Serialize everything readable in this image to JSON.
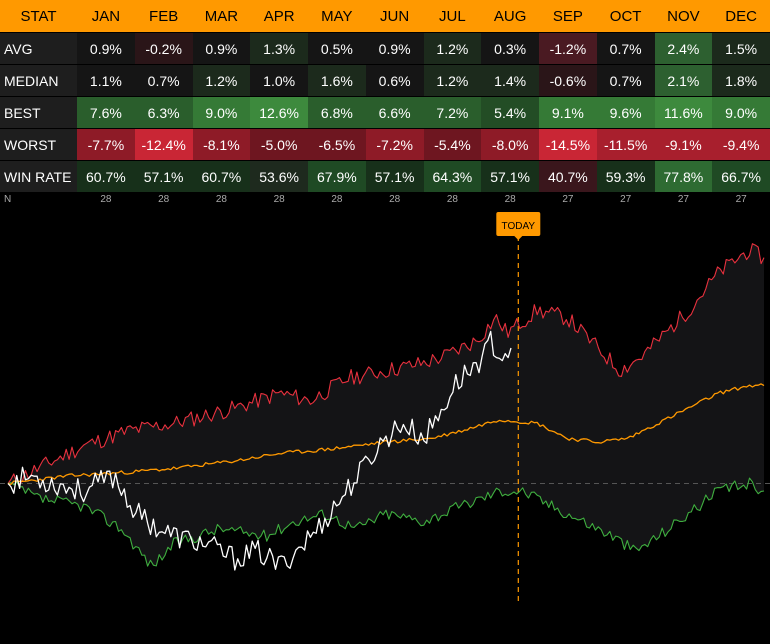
{
  "table": {
    "header_label": "STAT",
    "months": [
      "JAN",
      "FEB",
      "MAR",
      "APR",
      "MAY",
      "JUN",
      "JUL",
      "AUG",
      "SEP",
      "OCT",
      "NOV",
      "DEC"
    ],
    "rows": [
      {
        "label": "AVG",
        "values": [
          "0.9%",
          "-0.2%",
          "0.9%",
          "1.3%",
          "0.5%",
          "0.9%",
          "1.2%",
          "0.3%",
          "-1.2%",
          "0.7%",
          "2.4%",
          "1.5%"
        ]
      },
      {
        "label": "MEDIAN",
        "values": [
          "1.1%",
          "0.7%",
          "1.2%",
          "1.0%",
          "1.6%",
          "0.6%",
          "1.2%",
          "1.4%",
          "-0.6%",
          "0.7%",
          "2.1%",
          "1.8%"
        ]
      },
      {
        "label": "BEST",
        "values": [
          "7.6%",
          "6.3%",
          "9.0%",
          "12.6%",
          "6.8%",
          "6.6%",
          "7.2%",
          "5.4%",
          "9.1%",
          "9.6%",
          "11.6%",
          "9.0%"
        ]
      },
      {
        "label": "WORST",
        "values": [
          "-7.7%",
          "-12.4%",
          "-8.1%",
          "-5.0%",
          "-6.5%",
          "-7.2%",
          "-5.4%",
          "-8.0%",
          "-14.5%",
          "-11.5%",
          "-9.1%",
          "-9.4%"
        ]
      },
      {
        "label": "WIN RATE",
        "values": [
          "60.7%",
          "57.1%",
          "60.7%",
          "53.6%",
          "67.9%",
          "57.1%",
          "64.3%",
          "57.1%",
          "40.7%",
          "59.3%",
          "77.8%",
          "66.7%"
        ]
      }
    ],
    "n_row": {
      "label": "N",
      "values": [
        "28",
        "28",
        "28",
        "28",
        "28",
        "28",
        "28",
        "28",
        "27",
        "27",
        "27",
        "27"
      ]
    }
  },
  "chart_data": {
    "type": "line",
    "marker_label": "TODAY",
    "marker_fraction": 0.675,
    "y_range": [
      -20,
      35
    ],
    "series": [
      {
        "color": "#e8313e",
        "keypoints": [
          [
            0,
            0
          ],
          [
            0.04,
            2
          ],
          [
            0.1,
            5
          ],
          [
            0.16,
            7
          ],
          [
            0.22,
            8
          ],
          [
            0.3,
            10
          ],
          [
            0.36,
            12
          ],
          [
            0.4,
            11
          ],
          [
            0.45,
            14
          ],
          [
            0.5,
            15
          ],
          [
            0.55,
            16
          ],
          [
            0.58,
            17
          ],
          [
            0.62,
            19
          ],
          [
            0.645,
            22
          ],
          [
            0.66,
            20
          ],
          [
            0.7,
            23
          ],
          [
            0.74,
            22
          ],
          [
            0.78,
            18
          ],
          [
            0.81,
            15
          ],
          [
            0.84,
            17
          ],
          [
            0.86,
            19
          ],
          [
            0.9,
            23
          ],
          [
            0.94,
            28
          ],
          [
            0.98,
            31
          ],
          [
            1,
            30
          ]
        ]
      },
      {
        "color": "#ff9900",
        "keypoints": [
          [
            0,
            0
          ],
          [
            0.08,
            1
          ],
          [
            0.16,
            1.5
          ],
          [
            0.22,
            2
          ],
          [
            0.3,
            3
          ],
          [
            0.36,
            4
          ],
          [
            0.42,
            4.5
          ],
          [
            0.5,
            5.5
          ],
          [
            0.56,
            6
          ],
          [
            0.6,
            7
          ],
          [
            0.65,
            8.5
          ],
          [
            0.7,
            8
          ],
          [
            0.74,
            6
          ],
          [
            0.78,
            5.5
          ],
          [
            0.82,
            6
          ],
          [
            0.86,
            8
          ],
          [
            0.9,
            10
          ],
          [
            0.94,
            12
          ],
          [
            0.98,
            13
          ],
          [
            1,
            13
          ]
        ]
      },
      {
        "color": "#3fae3f",
        "keypoints": [
          [
            0,
            0
          ],
          [
            0.04,
            -2
          ],
          [
            0.1,
            -3
          ],
          [
            0.15,
            -6
          ],
          [
            0.19,
            -11
          ],
          [
            0.22,
            -8
          ],
          [
            0.28,
            -6
          ],
          [
            0.34,
            -7
          ],
          [
            0.38,
            -5
          ],
          [
            0.42,
            -4
          ],
          [
            0.46,
            -6
          ],
          [
            0.5,
            -4
          ],
          [
            0.55,
            -5
          ],
          [
            0.6,
            -3
          ],
          [
            0.65,
            -1
          ],
          [
            0.68,
            -1
          ],
          [
            0.72,
            -3
          ],
          [
            0.76,
            -5
          ],
          [
            0.8,
            -7
          ],
          [
            0.83,
            -9
          ],
          [
            0.86,
            -7
          ],
          [
            0.9,
            -4
          ],
          [
            0.94,
            -1
          ],
          [
            0.98,
            0
          ],
          [
            1,
            -1
          ]
        ]
      },
      {
        "color": "#ffffff",
        "keypoints": [
          [
            0,
            0
          ],
          [
            0.03,
            1
          ],
          [
            0.06,
            0
          ],
          [
            0.1,
            -1
          ],
          [
            0.14,
            1
          ],
          [
            0.17,
            -4
          ],
          [
            0.2,
            -6
          ],
          [
            0.22,
            -7
          ],
          [
            0.26,
            -8
          ],
          [
            0.3,
            -10
          ],
          [
            0.33,
            -9
          ],
          [
            0.36,
            -11
          ],
          [
            0.38,
            -9
          ],
          [
            0.41,
            -6
          ],
          [
            0.44,
            -2
          ],
          [
            0.47,
            2
          ],
          [
            0.49,
            5
          ],
          [
            0.52,
            8
          ],
          [
            0.55,
            6
          ],
          [
            0.57,
            9
          ],
          [
            0.59,
            13
          ],
          [
            0.61,
            15
          ],
          [
            0.63,
            17
          ],
          [
            0.64,
            19
          ],
          [
            0.65,
            17
          ],
          [
            0.665,
            18
          ]
        ]
      }
    ]
  }
}
